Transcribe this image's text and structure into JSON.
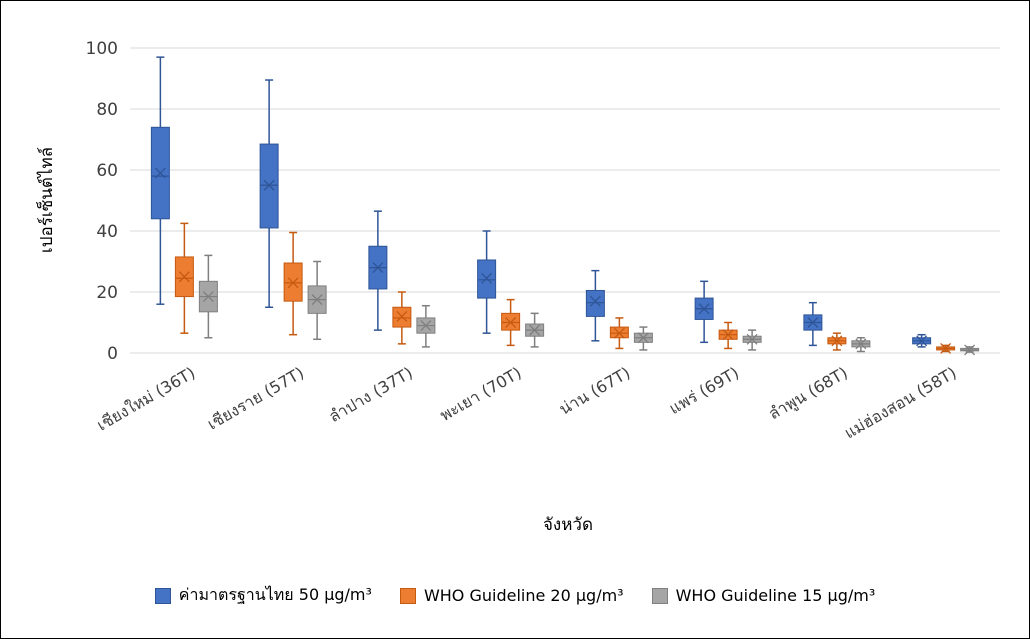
{
  "chart_data": {
    "type": "box",
    "xlabel": "จังหวัด",
    "ylabel": "เปอร์เซ็นต์ไทล์",
    "ylim": [
      0,
      100
    ],
    "yticks": [
      0,
      20,
      40,
      60,
      80,
      100
    ],
    "grid": true,
    "legend_position": "bottom",
    "categories": [
      "เชียงใหม่ (36T)",
      "เชียงราย (57T)",
      "ลำปาง (37T)",
      "พะเยา (70T)",
      "น่าน (67T)",
      "แพร่ (69T)",
      "ลำพูน (68T)",
      "แม่ฮ่องสอน (58T)"
    ],
    "series": [
      {
        "name": "ค่ามาตรฐานไทย 50 μg/m³",
        "color": "#4472C4",
        "stroke": "#2F5597",
        "boxes": [
          {
            "min": 16,
            "q1": 44,
            "median": 58,
            "mean": 59,
            "q3": 74,
            "max": 97
          },
          {
            "min": 15,
            "q1": 41,
            "median": 55,
            "mean": 55,
            "q3": 68.5,
            "max": 89.5
          },
          {
            "min": 7.5,
            "q1": 21,
            "median": 28,
            "mean": 28,
            "q3": 35,
            "max": 46.5
          },
          {
            "min": 6.5,
            "q1": 18,
            "median": 24,
            "mean": 24.5,
            "q3": 30.5,
            "max": 40
          },
          {
            "min": 4,
            "q1": 12,
            "median": 16.5,
            "mean": 17,
            "q3": 20.5,
            "max": 27
          },
          {
            "min": 3.5,
            "q1": 11,
            "median": 14.5,
            "mean": 14.5,
            "q3": 18,
            "max": 23.5
          },
          {
            "min": 2.5,
            "q1": 7.5,
            "median": 10,
            "mean": 10,
            "q3": 12.5,
            "max": 16.5
          },
          {
            "min": 2,
            "q1": 3,
            "median": 4,
            "mean": 4,
            "q3": 5,
            "max": 6
          }
        ]
      },
      {
        "name": "WHO Guideline 20 μg/m³",
        "color": "#ED7D31",
        "stroke": "#C55A11",
        "boxes": [
          {
            "min": 6.5,
            "q1": 18.5,
            "median": 24.5,
            "mean": 25,
            "q3": 31.5,
            "max": 42.5
          },
          {
            "min": 6,
            "q1": 17,
            "median": 23,
            "mean": 23,
            "q3": 29.5,
            "max": 39.5
          },
          {
            "min": 3,
            "q1": 8.5,
            "median": 11.5,
            "mean": 12,
            "q3": 15,
            "max": 20
          },
          {
            "min": 2.5,
            "q1": 7.5,
            "median": 10,
            "mean": 10,
            "q3": 13,
            "max": 17.5
          },
          {
            "min": 1.5,
            "q1": 5,
            "median": 6.5,
            "mean": 6.5,
            "q3": 8.5,
            "max": 11.5
          },
          {
            "min": 1.5,
            "q1": 4.5,
            "median": 6,
            "mean": 6,
            "q3": 7.5,
            "max": 10
          },
          {
            "min": 1,
            "q1": 3,
            "median": 4,
            "mean": 4,
            "q3": 5,
            "max": 6.5
          },
          {
            "min": 0.5,
            "q1": 1,
            "median": 1.5,
            "mean": 1.5,
            "q3": 2,
            "max": 2.5
          }
        ]
      },
      {
        "name": "WHO Guideline 15 μg/m³",
        "color": "#A5A5A5",
        "stroke": "#7F7F7F",
        "boxes": [
          {
            "min": 5,
            "q1": 13.5,
            "median": 18.5,
            "mean": 18.5,
            "q3": 23.5,
            "max": 32
          },
          {
            "min": 4.5,
            "q1": 13,
            "median": 17.5,
            "mean": 17.5,
            "q3": 22,
            "max": 30
          },
          {
            "min": 2,
            "q1": 6.5,
            "median": 9,
            "mean": 9,
            "q3": 11.5,
            "max": 15.5
          },
          {
            "min": 2,
            "q1": 5.5,
            "median": 7.5,
            "mean": 7.5,
            "q3": 9.5,
            "max": 13
          },
          {
            "min": 1,
            "q1": 3.5,
            "median": 5,
            "mean": 5,
            "q3": 6.5,
            "max": 8.5
          },
          {
            "min": 1,
            "q1": 3.5,
            "median": 4.5,
            "mean": 4.5,
            "q3": 5.5,
            "max": 7.5
          },
          {
            "min": 0.5,
            "q1": 2,
            "median": 3,
            "mean": 3,
            "q3": 4,
            "max": 5
          },
          {
            "min": 0.3,
            "q1": 0.7,
            "median": 1,
            "mean": 1,
            "q3": 1.5,
            "max": 2
          }
        ]
      }
    ]
  }
}
